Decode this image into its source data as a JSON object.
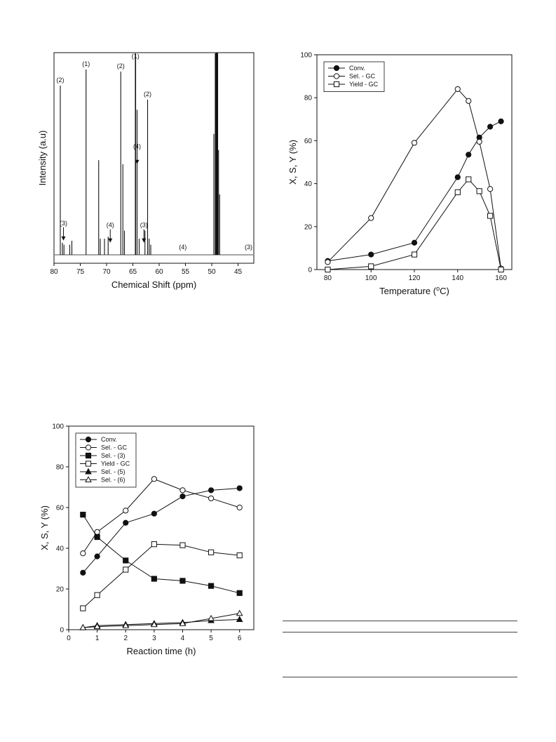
{
  "colors": {
    "ink": "#111111",
    "marker_fill_open": "#ffffff",
    "marker_fill_solid": "#111111"
  },
  "chart_data": [
    {
      "id": "nmr",
      "type": "line",
      "xlabel": "Chemical Shift (ppm)",
      "ylabel": "Intensity (a.u)",
      "xlim": [
        80,
        42
      ],
      "x_reversed": true,
      "xticks": [
        80,
        75,
        70,
        65,
        60,
        55,
        50,
        45
      ],
      "ylim": [
        0,
        100
      ],
      "peaks": [
        {
          "x": 78.8,
          "h": 84
        },
        {
          "x": 78.4,
          "h": 6
        },
        {
          "x": 78.1,
          "h": 5
        },
        {
          "x": 77.0,
          "h": 5
        },
        {
          "x": 76.6,
          "h": 7
        },
        {
          "x": 73.9,
          "h": 92
        },
        {
          "x": 71.5,
          "h": 47
        },
        {
          "x": 71.2,
          "h": 8
        },
        {
          "x": 70.4,
          "h": 8
        },
        {
          "x": 69.7,
          "h": 9
        },
        {
          "x": 67.3,
          "h": 91
        },
        {
          "x": 66.9,
          "h": 45
        },
        {
          "x": 66.6,
          "h": 12
        },
        {
          "x": 64.5,
          "h": 100
        },
        {
          "x": 64.2,
          "h": 72
        },
        {
          "x": 63.8,
          "h": 8
        },
        {
          "x": 62.7,
          "h": 12
        },
        {
          "x": 62.2,
          "h": 77
        },
        {
          "x": 61.9,
          "h": 8
        },
        {
          "x": 61.6,
          "h": 5
        },
        {
          "x": 49.6,
          "h": 60
        },
        {
          "x": 49.3,
          "h": 100
        },
        {
          "x": 49.1,
          "h": 100
        },
        {
          "x": 48.9,
          "h": 100
        },
        {
          "x": 48.7,
          "h": 52
        },
        {
          "x": 48.5,
          "h": 30
        }
      ],
      "annotations": [
        {
          "text": "(2)",
          "x": 78.8,
          "h": 84,
          "arrow": false
        },
        {
          "text": "(3)",
          "x": 78.2,
          "h": 6,
          "arrow": true
        },
        {
          "text": "(1)",
          "x": 73.9,
          "h": 92,
          "arrow": false
        },
        {
          "text": "(4)",
          "x": 69.3,
          "h": 5,
          "arrow": true
        },
        {
          "text": "(2)",
          "x": 67.3,
          "h": 91,
          "arrow": false
        },
        {
          "text": "(1)",
          "x": 64.5,
          "h": 100,
          "arrow": false
        },
        {
          "text": "(4)",
          "x": 64.2,
          "h": 44,
          "arrow": true
        },
        {
          "text": "(3)",
          "x": 62.9,
          "h": 5,
          "arrow": true
        },
        {
          "text": "(2)",
          "x": 62.2,
          "h": 77,
          "arrow": false
        },
        {
          "text": "(4)",
          "x": 55.5,
          "h": 1,
          "arrow": false
        },
        {
          "text": "(3)",
          "x": 43.0,
          "h": 1,
          "arrow": false
        }
      ]
    },
    {
      "id": "temp",
      "type": "line",
      "xlabel": "Temperature (oC)",
      "ylabel": "X, S, Y (%)",
      "xlim": [
        75,
        165
      ],
      "ylim": [
        0,
        100
      ],
      "xticks": [
        80,
        100,
        120,
        140,
        160
      ],
      "yticks": [
        0,
        20,
        40,
        60,
        80,
        100
      ],
      "legend": "top-left",
      "series": [
        {
          "name": "Conv.",
          "marker": "circle-filled",
          "x": [
            80,
            100,
            120,
            140,
            145,
            150,
            155,
            160
          ],
          "y": [
            4,
            7,
            12.5,
            43,
            53.5,
            61.5,
            66.5,
            69
          ]
        },
        {
          "name": "Sel. - GC",
          "marker": "circle-open",
          "x": [
            80,
            100,
            120,
            140,
            145,
            150,
            155,
            160
          ],
          "y": [
            3.5,
            24,
            59,
            84,
            78.5,
            59.5,
            37.5,
            0.5
          ]
        },
        {
          "name": "Yield - GC",
          "marker": "square-open",
          "x": [
            80,
            100,
            120,
            140,
            145,
            150,
            155,
            160
          ],
          "y": [
            0,
            1.5,
            7,
            36,
            42,
            36.5,
            25,
            0
          ]
        }
      ]
    },
    {
      "id": "time",
      "type": "line",
      "xlabel": "Reaction time (h)",
      "ylabel": "X, S, Y (%)",
      "xlim": [
        0,
        6.5
      ],
      "ylim": [
        0,
        100
      ],
      "xticks": [
        0,
        1,
        2,
        3,
        4,
        5,
        6
      ],
      "yticks": [
        0,
        20,
        40,
        60,
        80,
        100
      ],
      "legend": "top-left",
      "series": [
        {
          "name": "Conv.",
          "marker": "circle-filled",
          "x": [
            0.5,
            1,
            2,
            3,
            4,
            5,
            6
          ],
          "y": [
            28,
            36,
            52.5,
            57,
            65.5,
            68.5,
            69.5
          ]
        },
        {
          "name": "Sel. - GC",
          "marker": "circle-open",
          "x": [
            0.5,
            1,
            2,
            3,
            4,
            5,
            6
          ],
          "y": [
            37.5,
            48,
            58.5,
            74,
            68.5,
            64.5,
            60
          ]
        },
        {
          "name": "Sel. - (3)",
          "marker": "square-filled",
          "x": [
            0.5,
            1,
            2,
            3,
            4,
            5,
            6
          ],
          "y": [
            56.5,
            45.5,
            34,
            25,
            24,
            21.5,
            18
          ]
        },
        {
          "name": "Yield - GC",
          "marker": "square-open",
          "x": [
            0.5,
            1,
            2,
            3,
            4,
            5,
            6
          ],
          "y": [
            10.5,
            17,
            29.5,
            42,
            41.5,
            38,
            36.5
          ]
        },
        {
          "name": "Sel. - (5)",
          "marker": "triangle-filled",
          "x": [
            0.5,
            1,
            2,
            3,
            4,
            5,
            6
          ],
          "y": [
            1,
            2,
            2.5,
            3,
            3.5,
            4.5,
            5
          ]
        },
        {
          "name": "Sel. - (6)",
          "marker": "triangle-open",
          "x": [
            0.5,
            1,
            2,
            3,
            4,
            5,
            6
          ],
          "y": [
            1,
            1.5,
            2,
            2.5,
            3,
            5.5,
            8
          ]
        }
      ]
    }
  ]
}
